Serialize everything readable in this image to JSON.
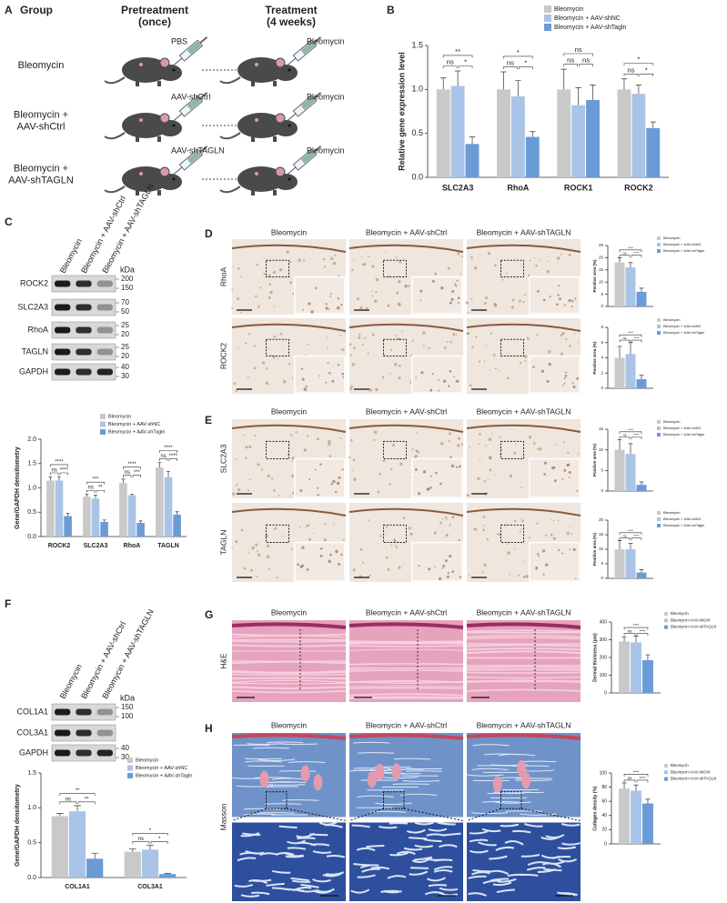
{
  "panel_labels": [
    "A",
    "B",
    "C",
    "D",
    "E",
    "F",
    "G",
    "H"
  ],
  "schematic": {
    "headers": [
      [
        "Group"
      ],
      [
        "Pretreatment",
        "(once)"
      ],
      [
        "Treatment",
        "(4 weeks)"
      ]
    ],
    "groups": [
      [
        "Bleomycin"
      ],
      [
        "Bleomycin +",
        "AAV-shCtrl"
      ],
      [
        "Bleomycin +",
        "AAV-shTAGLN"
      ]
    ],
    "pretreatment": [
      "PBS",
      "AAV-shCtrl",
      "AAV-shTAGLN"
    ],
    "treatment": [
      "Bleomycin",
      "Bleomycin",
      "Bleomycin"
    ]
  },
  "blot_c": {
    "lanes": [
      "Bleomycin",
      "Bleomycin + AAV-shCtrl",
      "Bleomycin + AAV-shTAGLN"
    ],
    "unit": "kDa",
    "bands": [
      {
        "name": "ROCK2",
        "markers": [
          200,
          150
        ]
      },
      {
        "name": "SLC2A3",
        "markers": [
          70,
          50
        ]
      },
      {
        "name": "RhoA",
        "markers": [
          25,
          20
        ]
      },
      {
        "name": "TAGLN",
        "markers": [
          25,
          20
        ]
      },
      {
        "name": "GAPDH",
        "markers": [
          40,
          30
        ]
      }
    ]
  },
  "blot_f": {
    "lanes": [
      "Bleomycin",
      "Bleomycin + AAV-shCtrl",
      "Bleomycin + AAV-shTAGLN"
    ],
    "unit": "kDa",
    "bands": [
      {
        "name": "COL1A1",
        "markers": [
          150,
          100
        ]
      },
      {
        "name": "COL3A1"
      },
      {
        "name": "GAPDH",
        "markers": [
          40,
          30
        ]
      }
    ]
  },
  "micrographs": {
    "D": {
      "columns": [
        "Bleomycin",
        "Bleomycin + AAV-shCtrl",
        "Bleomycin + AAV-shTAGLN"
      ],
      "rows": [
        "RhoA",
        "ROCK2"
      ]
    },
    "E": {
      "columns": [
        "Bleomycin",
        "Bleomycin + AAV-shCtrl",
        "Bleomycin + AAV-shTAGLN"
      ],
      "rows": [
        "SLC2A3",
        "TAGLN"
      ]
    },
    "G": {
      "columns": [
        "Bleomycin",
        "Bleomycin + AAV-shCtrl",
        "Bleomycin + AAV-shTAGLN"
      ],
      "rows": [
        "H&E"
      ]
    },
    "H": {
      "columns": [
        "Bleomycin",
        "Bleomycin + AAV-shCtrl",
        "Bleomycin + AAV-shTAGLN"
      ],
      "rows": [
        "Masson"
      ]
    }
  },
  "chart_data": [
    {
      "type": "bar",
      "ylabel": "Relative gene expression level",
      "categories": [
        "SLC2A3",
        "RhoA",
        "ROCK1",
        "ROCK2"
      ],
      "series": [
        {
          "name": "Bleomycin",
          "color": "#c9c9c9",
          "values": [
            1.0,
            1.0,
            1.0,
            1.0
          ],
          "errors": [
            0.13,
            0.2,
            0.23,
            0.12
          ]
        },
        {
          "name": "Bleomycin + AAV-shNC",
          "color": "#a9c4e6",
          "values": [
            1.04,
            0.92,
            0.82,
            0.95
          ],
          "errors": [
            0.17,
            0.18,
            0.2,
            0.1
          ]
        },
        {
          "name": "Bleomycin + AAV-shTagln",
          "color": "#6b9bd6",
          "values": [
            0.38,
            0.46,
            0.88,
            0.56
          ],
          "errors": [
            0.08,
            0.06,
            0.17,
            0.07
          ]
        }
      ],
      "ylim": [
        0,
        1.5
      ],
      "yticks": [
        {
          "value": 0,
          "label": "0.0"
        },
        {
          "value": 0.5,
          "label": "0.5"
        },
        {
          "value": 1,
          "label": "1.0"
        },
        {
          "value": 1.5,
          "label": "1.5"
        }
      ],
      "significance": [
        [
          "**",
          "ns",
          "*"
        ],
        [
          "*",
          "ns",
          "*"
        ],
        [
          "ns",
          "ns",
          "ns"
        ],
        [
          "*",
          "ns",
          "*"
        ]
      ]
    },
    {
      "type": "bar",
      "ylabel": "Gene/GAPDH densitometry",
      "categories": [
        "ROCK2",
        "SLC2A3",
        "RhoA",
        "TAGLN"
      ],
      "series": [
        {
          "name": "Bleomycin",
          "color": "#c9c9c9",
          "values": [
            1.15,
            0.82,
            1.1,
            1.42
          ],
          "errors": [
            0.07,
            0.05,
            0.08,
            0.1
          ]
        },
        {
          "name": "Bleomycin + AAV-shNC",
          "color": "#a9c4e6",
          "values": [
            1.15,
            0.78,
            0.85,
            1.22
          ],
          "errors": [
            0.08,
            0.07,
            0.02,
            0.12
          ]
        },
        {
          "name": "Bleomycin + AAV-shTagln",
          "color": "#6b9bd6",
          "values": [
            0.42,
            0.3,
            0.28,
            0.45
          ],
          "errors": [
            0.06,
            0.04,
            0.04,
            0.06
          ]
        }
      ],
      "ylim": [
        0,
        2
      ],
      "yticks": [
        {
          "value": 0,
          "label": "0.0"
        },
        {
          "value": 0.5,
          "label": "0.5"
        },
        {
          "value": 1,
          "label": "1.0"
        },
        {
          "value": 1.5,
          "label": "1.5"
        },
        {
          "value": 2,
          "label": "2.0"
        }
      ],
      "significance": [
        [
          "****",
          "ns",
          "****"
        ],
        [
          "***",
          "ns",
          "**"
        ],
        [
          "****",
          "ns",
          "***"
        ],
        [
          "****",
          "ns",
          "****"
        ]
      ]
    },
    {
      "type": "bar",
      "ylabel": "Gene/GAPDH densitometry",
      "categories": [
        "COL1A1",
        "COL3A1"
      ],
      "series": [
        {
          "name": "Bleomycin",
          "color": "#c9c9c9",
          "values": [
            0.88,
            0.37
          ],
          "errors": [
            0.04,
            0.04
          ]
        },
        {
          "name": "Bleomycin + AAV-shNC",
          "color": "#a9c4e6",
          "values": [
            0.95,
            0.4
          ],
          "errors": [
            0.08,
            0.06
          ]
        },
        {
          "name": "Bleomycin + AAV-shTagln",
          "color": "#6b9bd6",
          "values": [
            0.27,
            0.05
          ],
          "errors": [
            0.08,
            0.01
          ]
        }
      ],
      "ylim": [
        0,
        1.5
      ],
      "yticks": [
        {
          "value": 0,
          "label": "0.0"
        },
        {
          "value": 0.5,
          "label": "0.5"
        },
        {
          "value": 1,
          "label": "1.0"
        },
        {
          "value": 1.5,
          "label": "1.5"
        }
      ],
      "significance": [
        [
          "**",
          "ns",
          "**"
        ],
        [
          "*",
          "ns",
          "*"
        ]
      ]
    },
    {
      "type": "bar",
      "ylabel": "Positive area (%)",
      "categories": [
        null
      ],
      "series": [
        {
          "name": "Bleomycin",
          "color": "#c9c9c9",
          "values": [
            18
          ],
          "errors": [
            2
          ]
        },
        {
          "name": "Bleomycin + AAV-shNC",
          "color": "#a9c4e6",
          "values": [
            16
          ],
          "errors": [
            2
          ]
        },
        {
          "name": "Bleomycin + AAV-shTagln",
          "color": "#6b9bd6",
          "values": [
            6
          ],
          "errors": [
            1.5
          ]
        }
      ],
      "ylim": [
        0,
        25
      ],
      "yticks": [
        0,
        5,
        10,
        15,
        20,
        25
      ],
      "significance": [
        [
          "****",
          "ns",
          "****"
        ]
      ]
    },
    {
      "type": "bar",
      "ylabel": "Positive area (%)",
      "categories": [
        null
      ],
      "series": [
        {
          "name": "Bleomycin",
          "color": "#c9c9c9",
          "values": [
            4
          ],
          "errors": [
            1.5
          ]
        },
        {
          "name": "Bleomycin + AAV-shNC",
          "color": "#a9c4e6",
          "values": [
            4.5
          ],
          "errors": [
            1.5
          ]
        },
        {
          "name": "Bleomycin + AAV-shTagln",
          "color": "#6b9bd6",
          "values": [
            1.2
          ],
          "errors": [
            0.5
          ]
        }
      ],
      "ylim": [
        0,
        8
      ],
      "yticks": [
        0,
        2,
        4,
        6,
        8
      ],
      "significance": [
        [
          "****",
          "ns",
          "****"
        ]
      ]
    },
    {
      "type": "bar",
      "ylabel": "Positive area (%)",
      "categories": [
        null
      ],
      "series": [
        {
          "name": "Bleomycin",
          "color": "#c9c9c9",
          "values": [
            10
          ],
          "errors": [
            2.5
          ]
        },
        {
          "name": "Bleomycin + AAV-shNC",
          "color": "#a9c4e6",
          "values": [
            9
          ],
          "errors": [
            2.5
          ]
        },
        {
          "name": "Bleomycin + AAV-shTagln",
          "color": "#6b9bd6",
          "values": [
            1.5
          ],
          "errors": [
            0.7
          ]
        }
      ],
      "ylim": [
        0,
        15
      ],
      "yticks": [
        0,
        5,
        10,
        15
      ],
      "significance": [
        [
          "****",
          "ns",
          "****"
        ]
      ]
    },
    {
      "type": "bar",
      "ylabel": "Positive area (%)",
      "categories": [
        null
      ],
      "series": [
        {
          "name": "Bleomycin",
          "color": "#c9c9c9",
          "values": [
            10
          ],
          "errors": [
            3
          ]
        },
        {
          "name": "Bleomycin + AAV-shNC",
          "color": "#a9c4e6",
          "values": [
            10
          ],
          "errors": [
            2
          ]
        },
        {
          "name": "Bleomycin + AAV-shTagln",
          "color": "#6b9bd6",
          "values": [
            2
          ],
          "errors": [
            1
          ]
        }
      ],
      "ylim": [
        0,
        20
      ],
      "yticks": [
        0,
        5,
        10,
        15,
        20
      ],
      "significance": [
        [
          "****",
          "ns",
          "****"
        ]
      ]
    },
    {
      "type": "bar",
      "ylabel": "Dermal thickness (μm)",
      "categories": [
        null
      ],
      "series": [
        {
          "name": "Bleomycin",
          "color": "#c9c9c9",
          "values": [
            290
          ],
          "errors": [
            25
          ]
        },
        {
          "name": "Bleomycin+AAV-shCtrl",
          "color": "#a9c4e6",
          "values": [
            285
          ],
          "errors": [
            35
          ]
        },
        {
          "name": "Bleomycin+AAV-shTAGLN",
          "color": "#6b9bd6",
          "values": [
            185
          ],
          "errors": [
            30
          ]
        }
      ],
      "ylim": [
        0,
        400
      ],
      "yticks": [
        0,
        100,
        200,
        300,
        400
      ],
      "significance": [
        [
          "****",
          "ns",
          "****"
        ]
      ]
    },
    {
      "type": "bar",
      "ylabel": "Collagen density (%)",
      "categories": [
        null
      ],
      "series": [
        {
          "name": "Bleomycin",
          "color": "#c9c9c9",
          "values": [
            78
          ],
          "errors": [
            8
          ]
        },
        {
          "name": "Bleomycin+AAV-shCtrl",
          "color": "#a9c4e6",
          "values": [
            75
          ],
          "errors": [
            8
          ]
        },
        {
          "name": "Bleomycin+AAV-shTAGLN",
          "color": "#6b9bd6",
          "values": [
            57
          ],
          "errors": [
            6
          ]
        }
      ],
      "ylim": [
        0,
        100
      ],
      "yticks": [
        0,
        20,
        40,
        60,
        80,
        100
      ],
      "significance": [
        [
          "****",
          "ns",
          "****"
        ]
      ]
    }
  ]
}
